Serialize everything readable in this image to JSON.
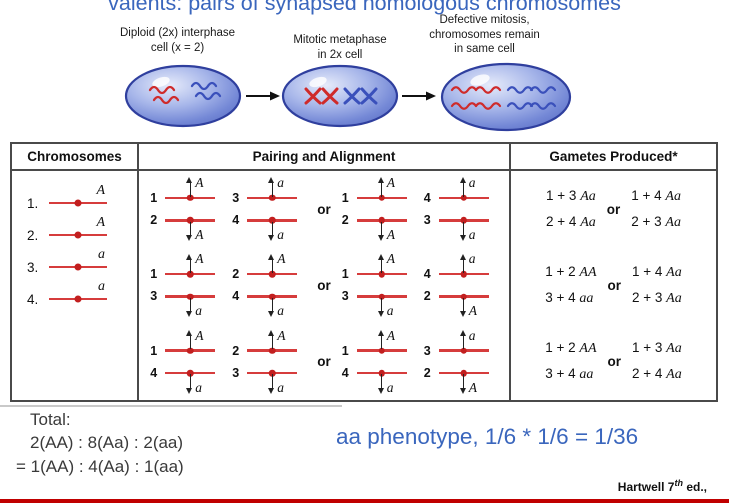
{
  "top_caption": "valents: pairs of synapsed homologous chromosomes",
  "cell_diagram": {
    "labels": {
      "interphase": [
        "Diploid (2x) interphase",
        "cell (x = 2)"
      ],
      "metaphase": [
        "Mitotic metaphase",
        "in 2x cell"
      ],
      "defective": [
        "Defective mitosis,",
        "chromosomes remain",
        "in same cell"
      ]
    }
  },
  "table": {
    "headers": {
      "chromosomes": "Chromosomes",
      "pairing": "Pairing and Alignment",
      "gametes": "Gametes Produced*"
    },
    "or_label": "or",
    "chromosomes": [
      {
        "num": "1.",
        "allele": "A"
      },
      {
        "num": "2.",
        "allele": "A"
      },
      {
        "num": "3.",
        "allele": "a"
      },
      {
        "num": "4.",
        "allele": "a"
      }
    ],
    "rows": [
      {
        "left": {
          "top": [
            {
              "n": "1",
              "a": "A"
            },
            {
              "n": "3",
              "a": "a"
            }
          ],
          "bottom": [
            {
              "n": "2",
              "a": "A"
            },
            {
              "n": "4",
              "a": "a"
            }
          ]
        },
        "right": {
          "top": [
            {
              "n": "1",
              "a": "A"
            },
            {
              "n": "4",
              "a": "a"
            }
          ],
          "bottom": [
            {
              "n": "2",
              "a": "A"
            },
            {
              "n": "3",
              "a": "a"
            }
          ]
        },
        "gametes_left": [
          {
            "pre": "1 + 3 ",
            "gt": "Aa"
          },
          {
            "pre": "2 + 4 ",
            "gt": "Aa"
          }
        ],
        "gametes_right": [
          {
            "pre": "1 + 4 ",
            "gt": "Aa"
          },
          {
            "pre": "2 + 3 ",
            "gt": "Aa"
          }
        ]
      },
      {
        "left": {
          "top": [
            {
              "n": "1",
              "a": "A"
            },
            {
              "n": "2",
              "a": "A"
            }
          ],
          "bottom": [
            {
              "n": "3",
              "a": "a"
            },
            {
              "n": "4",
              "a": "a"
            }
          ]
        },
        "right": {
          "top": [
            {
              "n": "1",
              "a": "A"
            },
            {
              "n": "4",
              "a": "a"
            }
          ],
          "bottom": [
            {
              "n": "3",
              "a": "a"
            },
            {
              "n": "2",
              "a": "A"
            }
          ]
        },
        "gametes_left": [
          {
            "pre": "1 + 2 ",
            "gt": "AA"
          },
          {
            "pre": "3 + 4 ",
            "gt": "aa"
          }
        ],
        "gametes_right": [
          {
            "pre": "1 + 4 ",
            "gt": "Aa"
          },
          {
            "pre": "2 + 3 ",
            "gt": "Aa"
          }
        ]
      },
      {
        "left": {
          "top": [
            {
              "n": "1",
              "a": "A"
            },
            {
              "n": "2",
              "a": "A"
            }
          ],
          "bottom": [
            {
              "n": "4",
              "a": "a"
            },
            {
              "n": "3",
              "a": "a"
            }
          ]
        },
        "right": {
          "top": [
            {
              "n": "1",
              "a": "A"
            },
            {
              "n": "3",
              "a": "a"
            }
          ],
          "bottom": [
            {
              "n": "4",
              "a": "a"
            },
            {
              "n": "2",
              "a": "A"
            }
          ]
        },
        "gametes_left": [
          {
            "pre": "1 + 2 ",
            "gt": "AA"
          },
          {
            "pre": "3 + 4 ",
            "gt": "aa"
          }
        ],
        "gametes_right": [
          {
            "pre": "1 + 3 ",
            "gt": "Aa"
          },
          {
            "pre": "2 + 4 ",
            "gt": "Aa"
          }
        ]
      }
    ]
  },
  "summary": {
    "total_label": "Total:",
    "ratio_line1": "2(AA) : 8(Aa) : 2(aa)",
    "ratio_line2": "= 1(AA) : 4(Aa) : 1(aa)"
  },
  "note": "aa phenotype, 1/6 * 1/6 = 1/36",
  "credit": {
    "main": "Hartwell 7",
    "sup": "th",
    "tail": " ed.,"
  },
  "colors": {
    "accent_blue": "#3a66bd",
    "chromosome_red": "#cf2b2b",
    "chromosome_blue": "#3a50bb",
    "bottom_bar_red": "#c00000"
  }
}
